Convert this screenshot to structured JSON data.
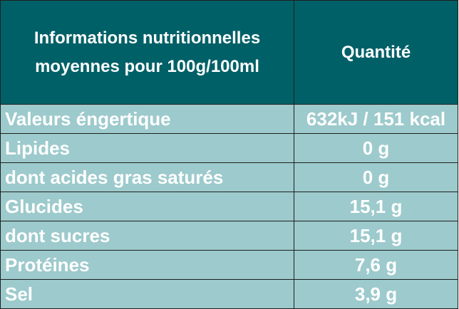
{
  "header": {
    "label_column": "Informations nutritionnelles moyennes pour 100g/100ml",
    "value_column": "Quantité"
  },
  "rows": [
    {
      "label": "Valeurs éngertique",
      "value": "632kJ / 151 kcal"
    },
    {
      "label": "Lipides",
      "value": "0 g"
    },
    {
      "label": "dont acides gras saturés",
      "value": "0 g"
    },
    {
      "label": "Glucides",
      "value": "15,1 g"
    },
    {
      "label": "dont sucres",
      "value": "15,1 g"
    },
    {
      "label": "Protéines",
      "value": "7,6 g"
    },
    {
      "label": "Sel",
      "value": "3,9 g"
    }
  ],
  "colors": {
    "header_background": "#006067",
    "row_background": "#9dcacc",
    "text": "#ffffff",
    "border": "#1f1f1f"
  }
}
